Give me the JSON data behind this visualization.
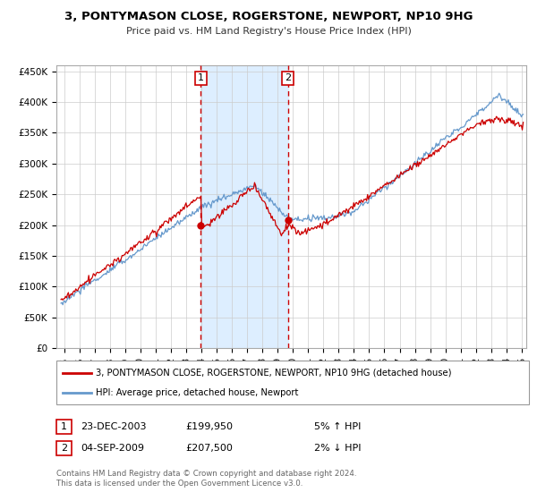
{
  "title": "3, PONTYMASON CLOSE, ROGERSTONE, NEWPORT, NP10 9HG",
  "subtitle": "Price paid vs. HM Land Registry's House Price Index (HPI)",
  "legend_line1": "3, PONTYMASON CLOSE, ROGERSTONE, NEWPORT, NP10 9HG (detached house)",
  "legend_line2": "HPI: Average price, detached house, Newport",
  "annotation_text": "Contains HM Land Registry data © Crown copyright and database right 2024.\nThis data is licensed under the Open Government Licence v3.0.",
  "marker1_label": "1",
  "marker2_label": "2",
  "marker1_date": "23-DEC-2003",
  "marker1_price": 199950,
  "marker1_price_str": "£199,950",
  "marker1_hpi_str": "5% ↑ HPI",
  "marker2_date": "04-SEP-2009",
  "marker2_price": 207500,
  "marker2_price_str": "£207,500",
  "marker2_hpi_str": "2% ↓ HPI",
  "marker1_x": 2003.97,
  "marker2_x": 2009.67,
  "red_line_color": "#cc0000",
  "blue_line_color": "#6699cc",
  "shade_color": "#ddeeff",
  "background_color": "#ffffff",
  "grid_color": "#cccccc",
  "ylim": [
    0,
    460000
  ],
  "xlim_start": 1994.5,
  "xlim_end": 2025.3,
  "yticks": [
    0,
    50000,
    100000,
    150000,
    200000,
    250000,
    300000,
    350000,
    400000,
    450000
  ],
  "xticks": [
    1995,
    1996,
    1997,
    1998,
    1999,
    2000,
    2001,
    2002,
    2003,
    2004,
    2005,
    2006,
    2007,
    2008,
    2009,
    2010,
    2011,
    2012,
    2013,
    2014,
    2015,
    2016,
    2017,
    2018,
    2019,
    2020,
    2021,
    2022,
    2023,
    2024,
    2025
  ]
}
